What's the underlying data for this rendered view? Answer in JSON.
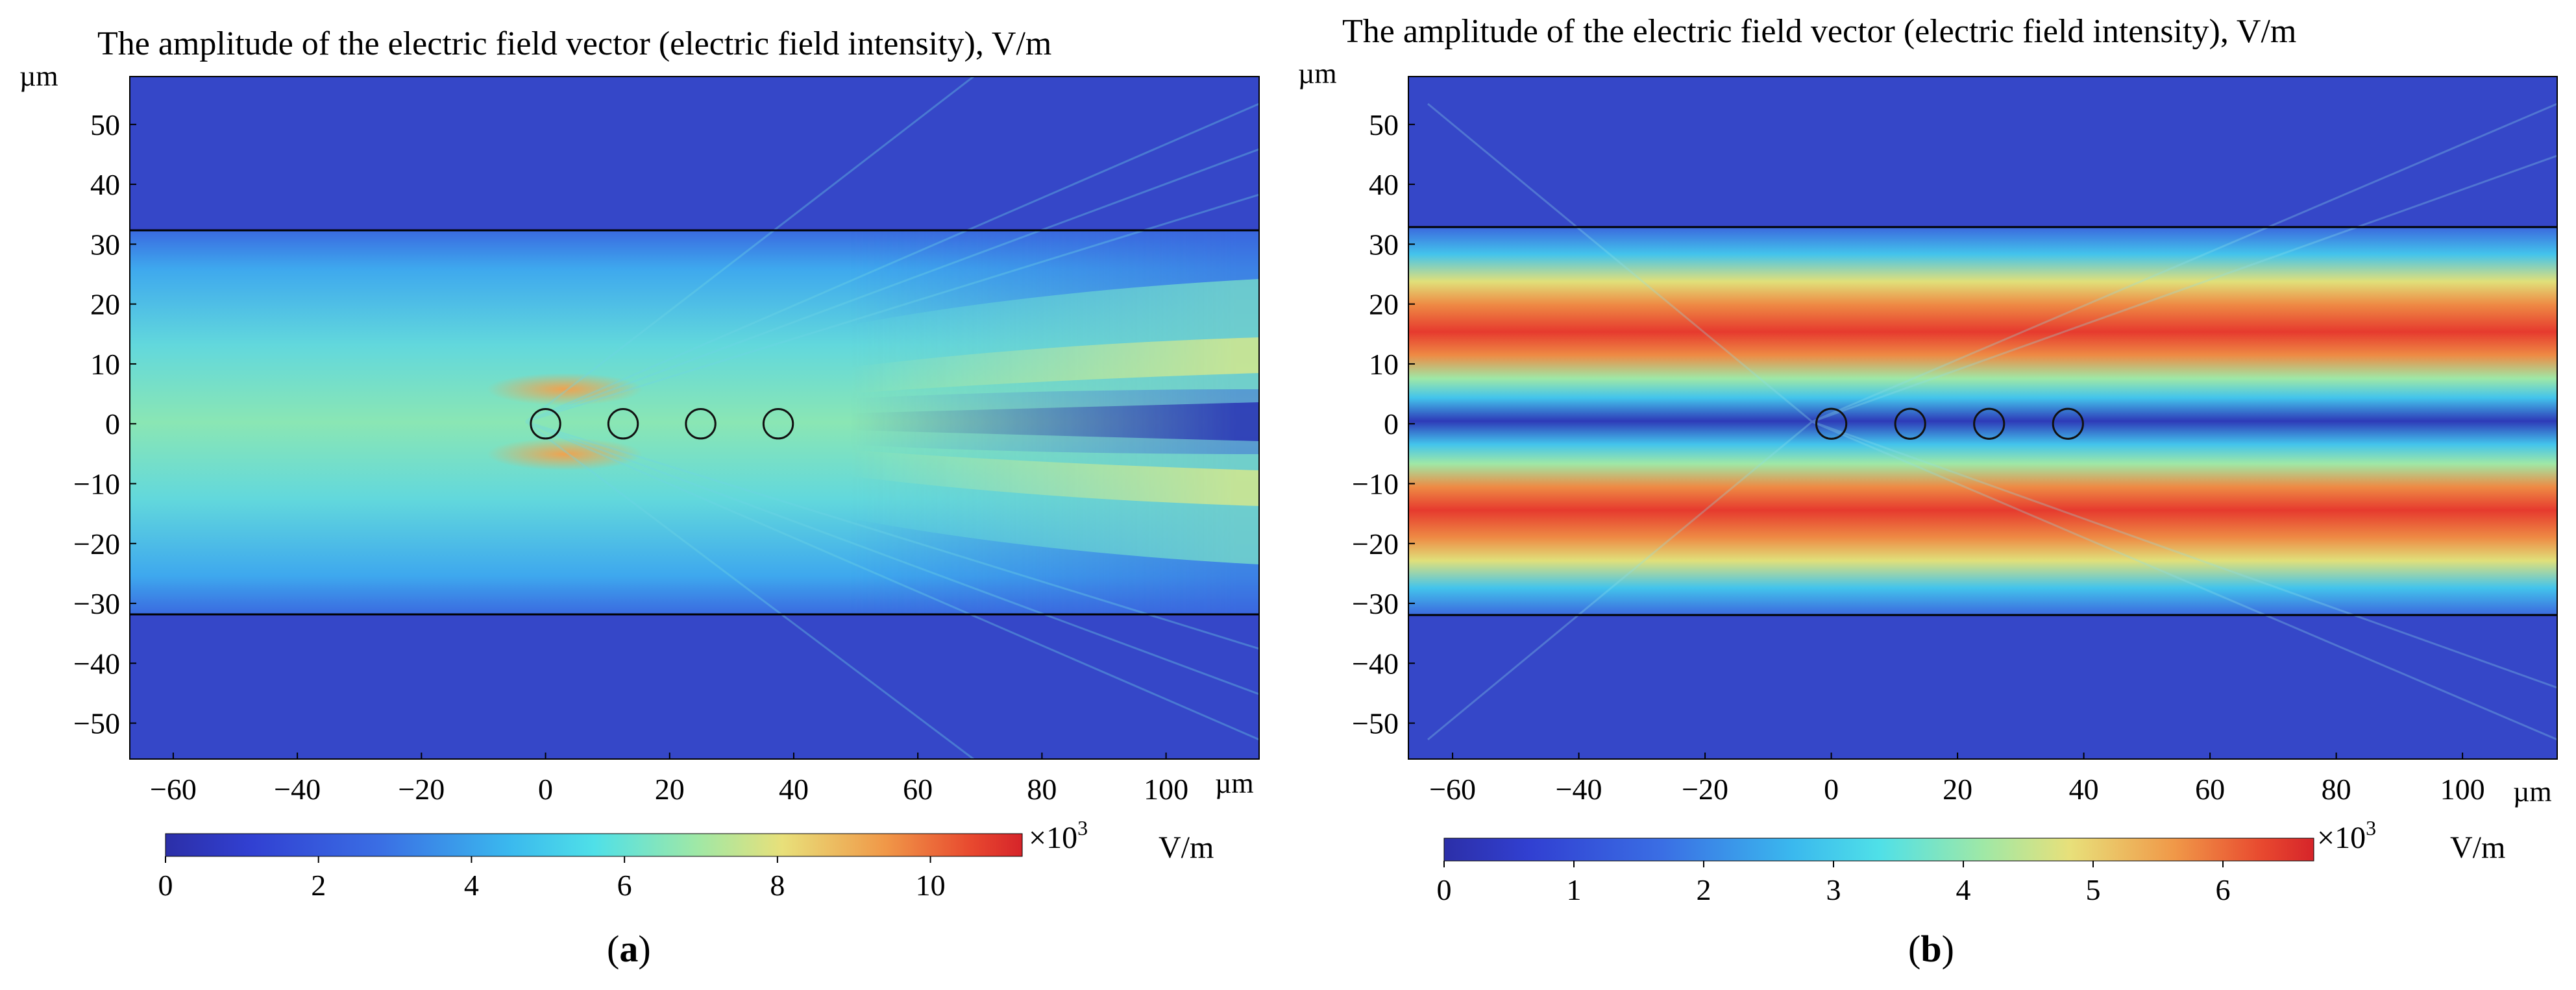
{
  "figure": {
    "panels": [
      {
        "id": "a",
        "caption_letter": "a",
        "title": "The amplitude of the electric field vector (electric field intensity), V/m",
        "x_unit": "µm",
        "y_unit": "µm",
        "colorbar": {
          "multiplier": "×10",
          "exponent": "3",
          "unit": "V/m",
          "ticks": [
            "0",
            "2",
            "4",
            "6",
            "8",
            "10"
          ]
        }
      },
      {
        "id": "b",
        "caption_letter": "b",
        "title": "The amplitude of the electric field vector (electric field intensity), V/m",
        "x_unit": "µm",
        "y_unit": "µm",
        "colorbar": {
          "multiplier": "×10",
          "exponent": "3",
          "unit": "V/m",
          "ticks": [
            "0",
            "1",
            "2",
            "3",
            "4",
            "5",
            "6"
          ]
        }
      }
    ]
  },
  "chart_data": [
    {
      "type": "heatmap",
      "title": "The amplitude of the electric field vector (electric field intensity), V/m",
      "xlabel": "µm",
      "ylabel": "µm",
      "xlim": [
        -67,
        115
      ],
      "ylim": [
        -56,
        58
      ],
      "x_ticks": [
        -60,
        -40,
        -20,
        0,
        20,
        40,
        60,
        80,
        100
      ],
      "y_ticks": [
        50,
        40,
        30,
        20,
        10,
        0,
        -10,
        -20,
        -30,
        -40,
        -50
      ],
      "x_tick_labels": [
        "−60",
        "−40",
        "−20",
        "0",
        "20",
        "40",
        "60",
        "80",
        "100"
      ],
      "y_tick_labels": [
        "50",
        "40",
        "30",
        "20",
        "10",
        "0",
        "−10",
        "−20",
        "−30",
        "−40",
        "−50"
      ],
      "waveguide_boundaries_y": [
        31,
        -31
      ],
      "circles": [
        {
          "x": 0,
          "y": 0,
          "r": 2.5
        },
        {
          "x": 12.5,
          "y": 0,
          "r": 2.5
        },
        {
          "x": 25,
          "y": 0,
          "r": 2.5
        },
        {
          "x": 37.5,
          "y": 0,
          "r": 2.5
        }
      ],
      "color_range": [
        0,
        11.2
      ],
      "color_ticks": [
        0,
        2,
        4,
        6,
        8,
        10
      ],
      "color_unit": "×10^3 V/m",
      "colormap": [
        "#2c2fa8",
        "#3140d2",
        "#3a6ee4",
        "#3ab8ee",
        "#4fe0e8",
        "#9fe8a6",
        "#e8e07a",
        "#f09848",
        "#e8492f",
        "#d6242a"
      ]
    },
    {
      "type": "heatmap",
      "title": "The amplitude of the electric field vector (electric field intensity), V/m",
      "xlabel": "µm",
      "ylabel": "µm",
      "xlim": [
        -67,
        115
      ],
      "ylim": [
        -56,
        58
      ],
      "x_ticks": [
        -60,
        -40,
        -20,
        0,
        20,
        40,
        60,
        80,
        100
      ],
      "y_ticks": [
        50,
        40,
        30,
        20,
        10,
        0,
        -10,
        -20,
        -30,
        -40,
        -50
      ],
      "x_tick_labels": [
        "−60",
        "−40",
        "−20",
        "0",
        "20",
        "40",
        "60",
        "80",
        "100"
      ],
      "y_tick_labels": [
        "50",
        "40",
        "30",
        "20",
        "10",
        "0",
        "−10",
        "−20",
        "−30",
        "−40",
        "−50"
      ],
      "waveguide_boundaries_y": [
        31,
        -31
      ],
      "circles": [
        {
          "x": 0,
          "y": 0,
          "r": 2.5
        },
        {
          "x": 12.5,
          "y": 0,
          "r": 2.5
        },
        {
          "x": 25,
          "y": 0,
          "r": 2.5
        },
        {
          "x": 37.5,
          "y": 0,
          "r": 2.5
        }
      ],
      "color_range": [
        0,
        6.7
      ],
      "color_ticks": [
        0,
        1,
        2,
        3,
        4,
        5,
        6
      ],
      "color_unit": "×10^3 V/m",
      "colormap": [
        "#2c2fa8",
        "#3140d2",
        "#3a6ee4",
        "#3ab8ee",
        "#4fe0e8",
        "#9fe8a6",
        "#e8e07a",
        "#f09848",
        "#e8492f",
        "#d6242a"
      ]
    }
  ]
}
